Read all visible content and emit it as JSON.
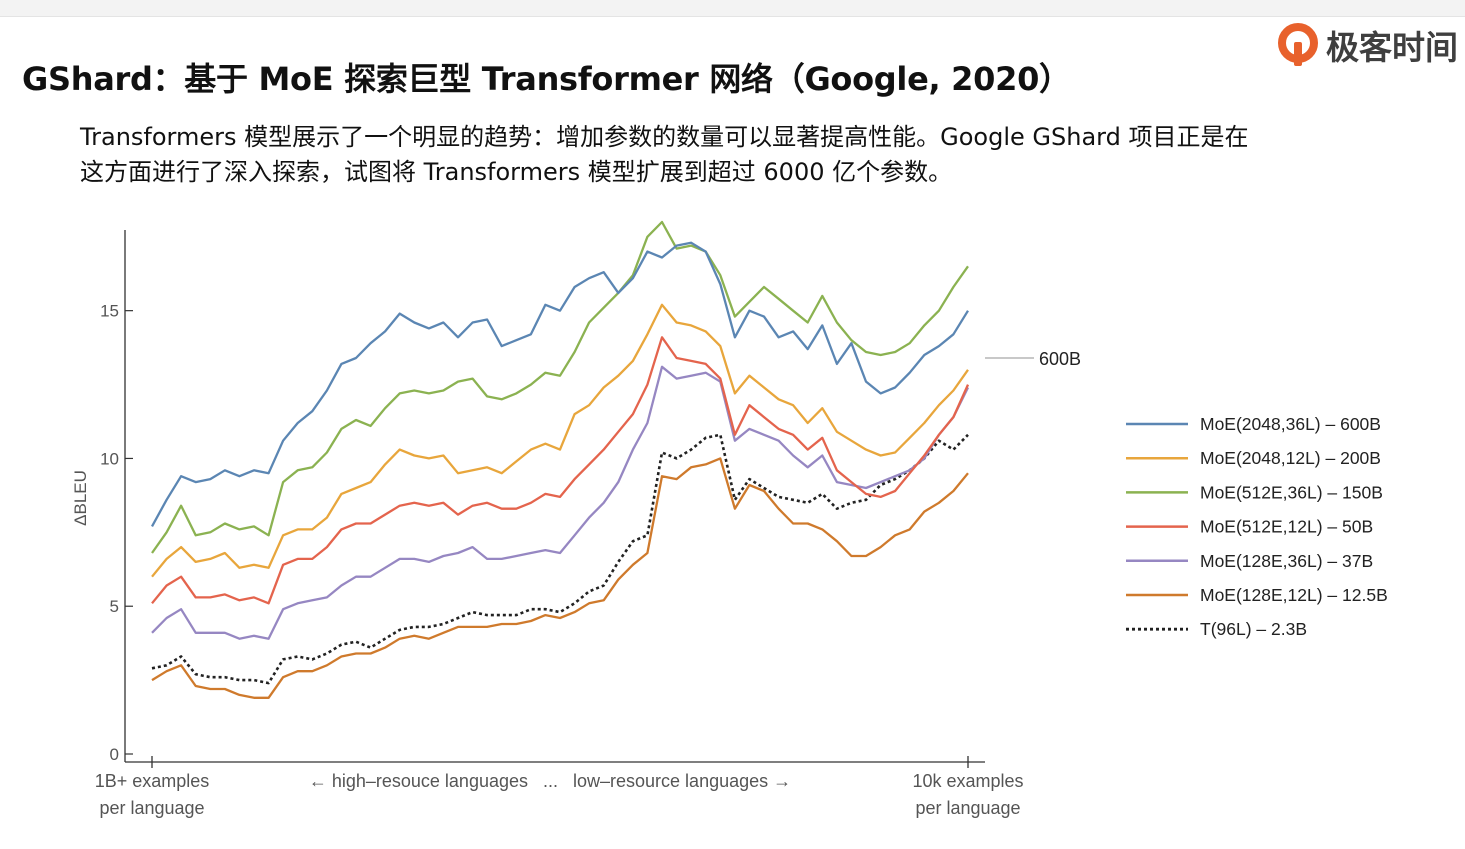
{
  "slide": {
    "title": "GShard：基于 MoE 探索巨型 Transformer 网络（Google, 2020）",
    "description_lines": [
      "Transformers 模型展示了一个明显的趋势：增加参数的数量可以显著提高性能。Google GShard 项目正是在",
      "这方面进行了深入探索，试图将 Transformers 模型扩展到超过 6000 亿个参数。"
    ],
    "logo_text": "极客时间",
    "logo_icon": "geektime-logo-icon",
    "accent_color": "#e8612c"
  },
  "chart_data": {
    "type": "line",
    "ylabel": "ΔBLEU",
    "ylim": [
      0,
      18
    ],
    "yticks": [
      0,
      5,
      10,
      15
    ],
    "x_start_label": [
      "1B+ examples",
      "per language"
    ],
    "x_end_label": [
      "10k examples",
      "per language"
    ],
    "x_middle_label": "← high–resouce languages   ...   low–resource languages →",
    "annotation": "600B",
    "legend_position": "right",
    "series": [
      {
        "name": "MoE(2048,36L) – 600B",
        "color": "#5b86b3",
        "dashed": false,
        "values": [
          7.7,
          8.6,
          9.4,
          9.2,
          9.3,
          9.6,
          9.4,
          9.6,
          9.5,
          10.6,
          11.2,
          11.6,
          12.3,
          13.2,
          13.4,
          13.9,
          14.3,
          14.9,
          14.6,
          14.4,
          14.6,
          14.1,
          14.6,
          14.7,
          13.8,
          14.0,
          14.2,
          15.2,
          15.0,
          15.8,
          16.1,
          16.3,
          15.6,
          16.1,
          17.0,
          16.8,
          17.2,
          17.3,
          17.0,
          15.9,
          14.1,
          15.0,
          14.8,
          14.1,
          14.3,
          13.7,
          14.5,
          13.2,
          13.9,
          12.6,
          12.2,
          12.4,
          12.9,
          13.5,
          13.8,
          14.2,
          15.0
        ]
      },
      {
        "name": "MoE(2048,12L) – 200B",
        "color": "#e8a63c",
        "dashed": false,
        "values": [
          6.0,
          6.6,
          7.0,
          6.5,
          6.6,
          6.8,
          6.3,
          6.4,
          6.3,
          7.4,
          7.6,
          7.6,
          8.0,
          8.8,
          9.0,
          9.2,
          9.8,
          10.3,
          10.1,
          10.0,
          10.1,
          9.5,
          9.6,
          9.7,
          9.5,
          9.9,
          10.3,
          10.5,
          10.3,
          11.5,
          11.8,
          12.4,
          12.8,
          13.3,
          14.2,
          15.2,
          14.6,
          14.5,
          14.3,
          13.8,
          12.2,
          12.8,
          12.4,
          12.0,
          11.8,
          11.2,
          11.7,
          10.9,
          10.6,
          10.3,
          10.1,
          10.2,
          10.7,
          11.2,
          11.8,
          12.3,
          13.0
        ]
      },
      {
        "name": "MoE(512E,36L) – 150B",
        "color": "#8bb251",
        "dashed": false,
        "values": [
          6.8,
          7.5,
          8.4,
          7.4,
          7.5,
          7.8,
          7.6,
          7.7,
          7.4,
          9.2,
          9.6,
          9.7,
          10.2,
          11.0,
          11.3,
          11.1,
          11.7,
          12.2,
          12.3,
          12.2,
          12.3,
          12.6,
          12.7,
          12.1,
          12.0,
          12.2,
          12.5,
          12.9,
          12.8,
          13.6,
          14.6,
          15.1,
          15.6,
          16.2,
          17.5,
          18.0,
          17.1,
          17.2,
          17.0,
          16.2,
          14.8,
          15.3,
          15.8,
          15.4,
          15.0,
          14.6,
          15.5,
          14.6,
          14.0,
          13.6,
          13.5,
          13.6,
          13.9,
          14.5,
          15.0,
          15.8,
          16.5
        ]
      },
      {
        "name": "MoE(512E,12L) – 50B",
        "color": "#e4644d",
        "dashed": false,
        "values": [
          5.1,
          5.7,
          6.0,
          5.3,
          5.3,
          5.4,
          5.2,
          5.3,
          5.1,
          6.4,
          6.6,
          6.6,
          7.0,
          7.6,
          7.8,
          7.8,
          8.1,
          8.4,
          8.5,
          8.4,
          8.5,
          8.1,
          8.4,
          8.5,
          8.3,
          8.3,
          8.5,
          8.8,
          8.7,
          9.3,
          9.8,
          10.3,
          10.9,
          11.5,
          12.5,
          14.1,
          13.4,
          13.3,
          13.2,
          12.7,
          10.8,
          11.8,
          11.4,
          11.0,
          10.8,
          10.3,
          10.7,
          9.6,
          9.2,
          8.8,
          8.7,
          8.9,
          9.5,
          10.1,
          10.8,
          11.4,
          12.5
        ]
      },
      {
        "name": "MoE(128E,36L) – 37B",
        "color": "#9687c2",
        "dashed": false,
        "values": [
          4.1,
          4.6,
          4.9,
          4.1,
          4.1,
          4.1,
          3.9,
          4.0,
          3.9,
          4.9,
          5.1,
          5.2,
          5.3,
          5.7,
          6.0,
          6.0,
          6.3,
          6.6,
          6.6,
          6.5,
          6.7,
          6.8,
          7.0,
          6.6,
          6.6,
          6.7,
          6.8,
          6.9,
          6.8,
          7.4,
          8.0,
          8.5,
          9.2,
          10.3,
          11.2,
          13.1,
          12.7,
          12.8,
          12.9,
          12.6,
          10.6,
          11.0,
          10.8,
          10.6,
          10.1,
          9.7,
          10.1,
          9.2,
          9.1,
          9.0,
          9.2,
          9.4,
          9.6,
          10.0,
          10.8,
          11.4,
          12.4
        ]
      },
      {
        "name": "MoE(128E,12L) – 12.5B",
        "color": "#cf7a2c",
        "dashed": false,
        "values": [
          2.5,
          2.8,
          3.0,
          2.3,
          2.2,
          2.2,
          2.0,
          1.9,
          1.9,
          2.6,
          2.8,
          2.8,
          3.0,
          3.3,
          3.4,
          3.4,
          3.6,
          3.9,
          4.0,
          3.9,
          4.1,
          4.3,
          4.3,
          4.3,
          4.4,
          4.4,
          4.5,
          4.7,
          4.6,
          4.8,
          5.1,
          5.2,
          5.9,
          6.4,
          6.8,
          9.4,
          9.3,
          9.7,
          9.8,
          10.0,
          8.3,
          9.1,
          8.9,
          8.3,
          7.8,
          7.8,
          7.6,
          7.2,
          6.7,
          6.7,
          7.0,
          7.4,
          7.6,
          8.2,
          8.5,
          8.9,
          9.5
        ]
      },
      {
        "name": "T(96L) – 2.3B",
        "color": "#222222",
        "dashed": true,
        "values": [
          2.9,
          3.0,
          3.3,
          2.7,
          2.6,
          2.6,
          2.5,
          2.5,
          2.4,
          3.2,
          3.3,
          3.2,
          3.4,
          3.7,
          3.8,
          3.6,
          3.9,
          4.2,
          4.3,
          4.3,
          4.4,
          4.6,
          4.8,
          4.7,
          4.7,
          4.7,
          4.9,
          4.9,
          4.8,
          5.1,
          5.5,
          5.7,
          6.5,
          7.2,
          7.4,
          10.2,
          10.0,
          10.3,
          10.7,
          10.8,
          8.6,
          9.3,
          9.0,
          8.7,
          8.6,
          8.5,
          8.8,
          8.3,
          8.5,
          8.6,
          9.1,
          9.3,
          9.6,
          10.0,
          10.6,
          10.3,
          10.8
        ]
      }
    ]
  }
}
